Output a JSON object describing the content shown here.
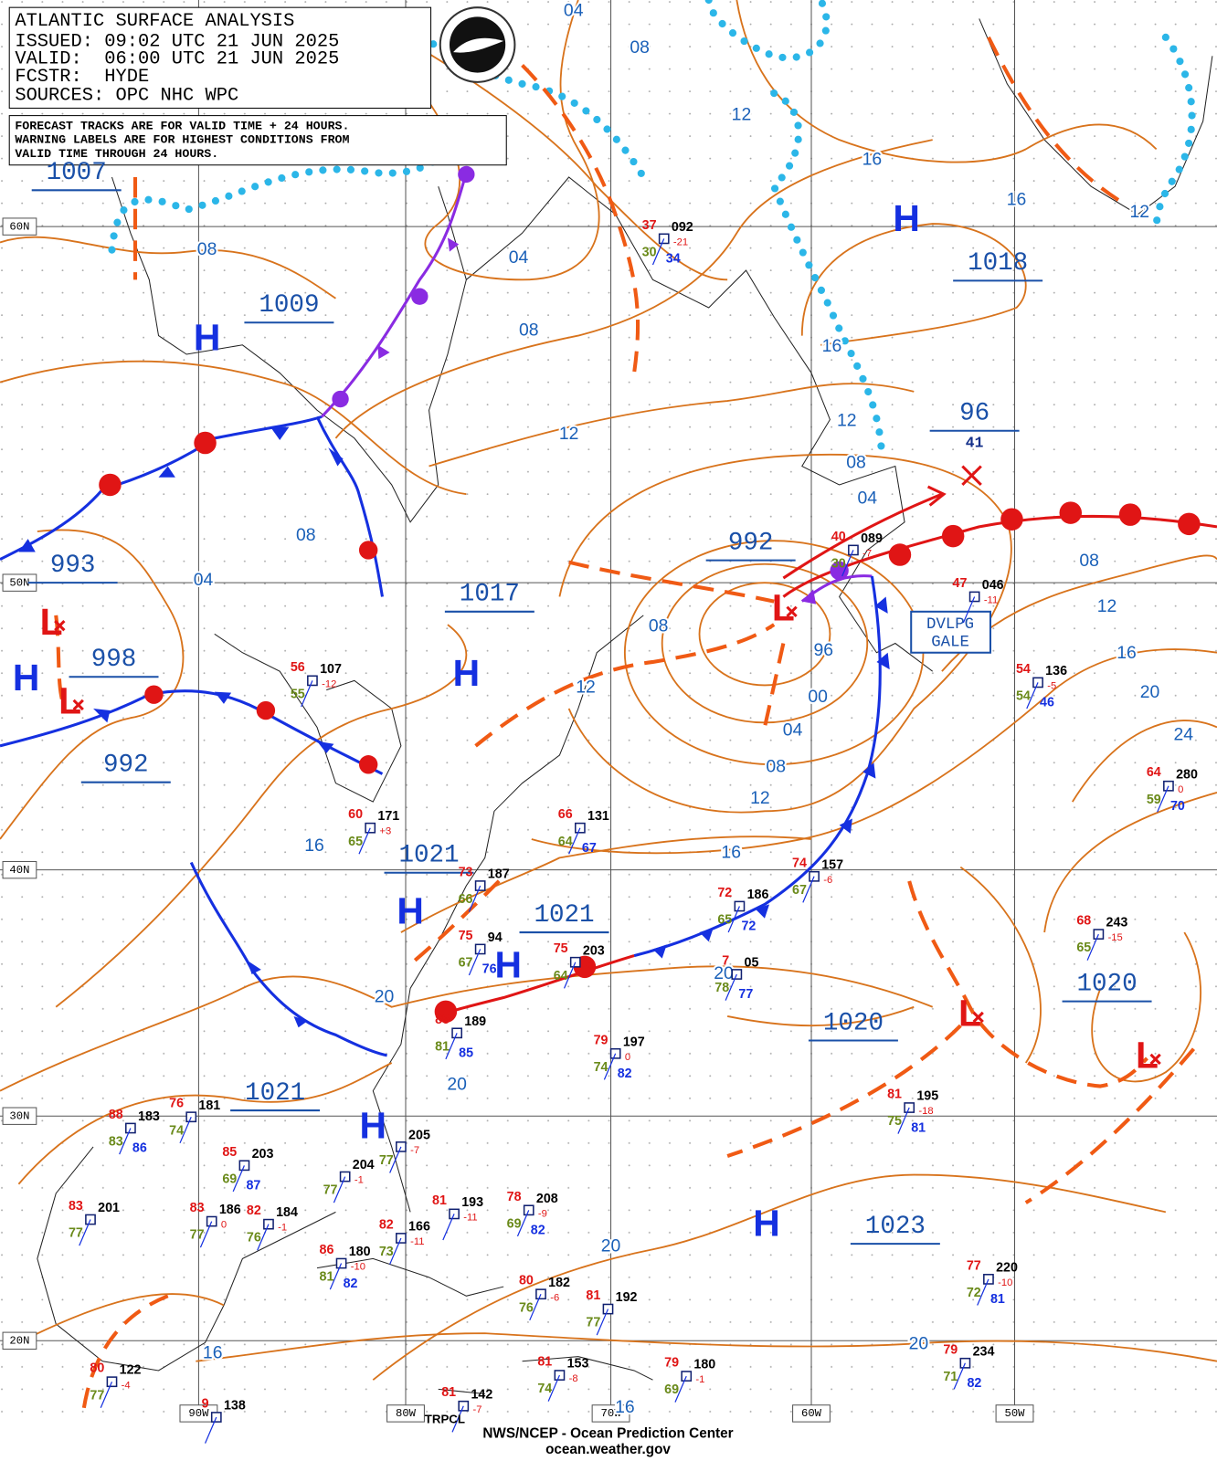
{
  "header": {
    "title": "ATLANTIC SURFACE ANALYSIS",
    "issued": "ISSUED: 09:02 UTC 21 JUN 2025",
    "valid": "VALID:  06:00 UTC 21 JUN 2025",
    "fcstr": "FCSTR:  HYDE",
    "sources": "SOURCES: OPC NHC WPC"
  },
  "note": [
    "FORECAST TRACKS ARE FOR VALID TIME + 24 HOURS.",
    "WARNING LABELS ARE FOR HIGHEST CONDITIONS FROM",
    "VALID TIME THROUGH 24 HOURS."
  ],
  "latitude_labels": [
    "60N",
    "50N",
    "40N",
    "30N",
    "20N"
  ],
  "longitude_labels": [
    "90W",
    "80W",
    "70W",
    "60W",
    "50W"
  ],
  "pressure_symbols": [
    "H",
    "H",
    "H",
    "H",
    "H",
    "H",
    "H",
    "H",
    "L",
    "L",
    "L",
    "L",
    "L"
  ],
  "pressure_labels": [
    "1007",
    "1009",
    "1018",
    "993",
    "998",
    "992",
    "1017",
    "992",
    "96",
    "41",
    "1021",
    "1021",
    "1021",
    "1020",
    "1020",
    "1023"
  ],
  "isobar_labels": [
    "04",
    "08",
    "12",
    "16",
    "16",
    "12",
    "08",
    "04",
    "08",
    "12",
    "16",
    "12",
    "08",
    "04",
    "08",
    "12",
    "16",
    "20",
    "24",
    "08",
    "04",
    "08",
    "12",
    "96",
    "00",
    "04",
    "08",
    "12",
    "16",
    "16",
    "20",
    "20",
    "20",
    "20",
    "20",
    "16",
    "16"
  ],
  "warning_label": "DVLPG GALE",
  "stations": [
    {
      "pressure": "092",
      "temp": "37",
      "dew": "30",
      "tendency": "-21",
      "extra": "34"
    },
    {
      "pressure": "089",
      "temp": "40",
      "dew": "30",
      "tendency": "-7",
      "extra": null
    },
    {
      "pressure": "046",
      "temp": "47",
      "dew": null,
      "tendency": "-11",
      "extra": null
    },
    {
      "pressure": "136",
      "temp": "54",
      "dew": "54",
      "tendency": "-5",
      "extra": "46"
    },
    {
      "pressure": "107",
      "temp": "56",
      "dew": "55",
      "tendency": "-12",
      "extra": null
    },
    {
      "pressure": "171",
      "temp": "60",
      "dew": "65",
      "tendency": "+3",
      "extra": null
    },
    {
      "pressure": "131",
      "temp": "66",
      "dew": "64",
      "tendency": null,
      "extra": "67"
    },
    {
      "pressure": "157",
      "temp": "74",
      "dew": "67",
      "tendency": "-6",
      "extra": null
    },
    {
      "pressure": "186",
      "temp": "72",
      "dew": "65",
      "tendency": null,
      "extra": "72"
    },
    {
      "pressure": "280",
      "temp": "64",
      "dew": "59",
      "tendency": "0",
      "extra": "70"
    },
    {
      "pressure": "187",
      "temp": "73",
      "dew": "66",
      "tendency": null,
      "extra": null
    },
    {
      "pressure": "94",
      "temp": "75",
      "dew": "67",
      "tendency": null,
      "extra": "76"
    },
    {
      "pressure": "203",
      "temp": "75",
      "dew": "64",
      "tendency": "-3",
      "extra": null
    },
    {
      "pressure": "05",
      "temp": "7",
      "dew": "78",
      "tendency": null,
      "extra": "77"
    },
    {
      "pressure": "189",
      "temp": "85",
      "dew": "81",
      "tendency": null,
      "extra": "85"
    },
    {
      "pressure": "197",
      "temp": "79",
      "dew": "74",
      "tendency": "0",
      "extra": "82"
    },
    {
      "pressure": "195",
      "temp": "81",
      "dew": "75",
      "tendency": "-18",
      "extra": "81"
    },
    {
      "pressure": "243",
      "temp": "68",
      "dew": "65",
      "tendency": "-15",
      "extra": null
    },
    {
      "pressure": "183",
      "temp": "88",
      "dew": "83",
      "tendency": null,
      "extra": "86"
    },
    {
      "pressure": "181",
      "temp": "76",
      "dew": "74",
      "tendency": null,
      "extra": null
    },
    {
      "pressure": "203",
      "temp": "85",
      "dew": "69",
      "tendency": null,
      "extra": "87"
    },
    {
      "pressure": "184",
      "temp": "82",
      "dew": "76",
      "tendency": "-1",
      "extra": null
    },
    {
      "pressure": "186",
      "temp": "83",
      "dew": "77",
      "tendency": "0",
      "extra": null
    },
    {
      "pressure": "201",
      "temp": "83",
      "dew": "77",
      "tendency": null,
      "extra": null
    },
    {
      "pressure": "205",
      "temp": null,
      "dew": "77",
      "tendency": "-7",
      "extra": null
    },
    {
      "pressure": "204",
      "temp": null,
      "dew": "77",
      "tendency": "-1",
      "extra": null
    },
    {
      "pressure": "166",
      "temp": "82",
      "dew": "73",
      "tendency": "-11",
      "extra": null
    },
    {
      "pressure": "180",
      "temp": "86",
      "dew": "81",
      "tendency": "-10",
      "extra": "82"
    },
    {
      "pressure": "193",
      "temp": "81",
      "dew": null,
      "tendency": "-11",
      "extra": null
    },
    {
      "pressure": "208",
      "temp": "78",
      "dew": "69",
      "tendency": "-9",
      "extra": "82"
    },
    {
      "pressure": "182",
      "temp": "80",
      "dew": "76",
      "tendency": "-6",
      "extra": null
    },
    {
      "pressure": "192",
      "temp": "81",
      "dew": "77",
      "tendency": null,
      "extra": null
    },
    {
      "pressure": "220",
      "temp": "77",
      "dew": "72",
      "tendency": "-10",
      "extra": "81"
    },
    {
      "pressure": "234",
      "temp": "79",
      "dew": "71",
      "tendency": null,
      "extra": "82"
    },
    {
      "pressure": "153",
      "temp": "81",
      "dew": "74",
      "tendency": "-8",
      "extra": null
    },
    {
      "pressure": "180",
      "temp": "79",
      "dew": "69",
      "tendency": "-1",
      "extra": null
    },
    {
      "pressure": "122",
      "temp": "80",
      "dew": "77",
      "tendency": "-4",
      "extra": null
    },
    {
      "pressure": "142",
      "temp": "81",
      "dew": null,
      "tendency": "-7",
      "extra": null
    },
    {
      "pressure": "138",
      "temp": "9",
      "dew": null,
      "tendency": null,
      "extra": null
    }
  ],
  "tropical_label": "TRPCL",
  "footer": {
    "agency": "NWS/NCEP - Ocean Prediction Center",
    "site": "ocean.weather.gov"
  }
}
